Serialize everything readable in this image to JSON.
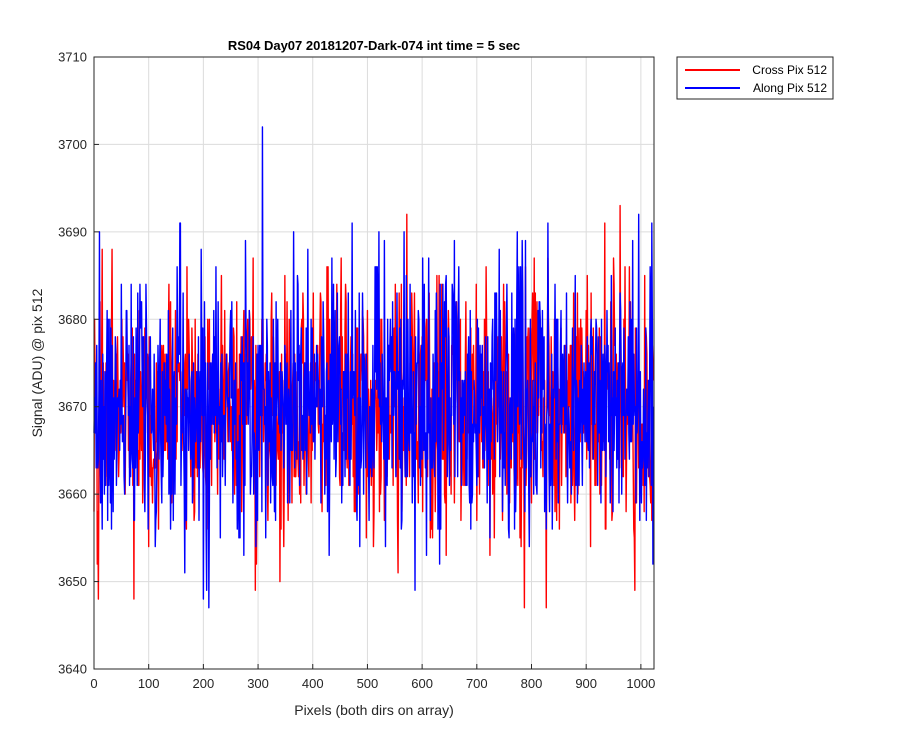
{
  "chart_data": {
    "type": "line",
    "title": "RS04 Day07 20181207-Dark-074 int time = 5 sec",
    "xlabel": "Pixels (both dirs on array)",
    "ylabel": "Signal (ADU) @ pix 512",
    "xlim": [
      0,
      1024
    ],
    "ylim": [
      3640,
      3710
    ],
    "xticks": [
      0,
      100,
      200,
      300,
      400,
      500,
      600,
      700,
      800,
      900,
      1000
    ],
    "yticks": [
      3640,
      3650,
      3660,
      3670,
      3680,
      3690,
      3700,
      3710
    ],
    "grid": true,
    "legend_position": "outside-top-right",
    "series": [
      {
        "name": "Cross Pix 512",
        "color": "#ff0000",
        "noise": {
          "count": 1024,
          "mean": 3670,
          "amplitude": 7.5,
          "min": 3647,
          "max": 3693
        },
        "extremes": [
          {
            "x": 8,
            "y": 3648
          },
          {
            "x": 295,
            "y": 3649
          },
          {
            "x": 340,
            "y": 3650
          },
          {
            "x": 572,
            "y": 3692
          },
          {
            "x": 787,
            "y": 3647
          },
          {
            "x": 827,
            "y": 3647
          },
          {
            "x": 962,
            "y": 3693
          }
        ]
      },
      {
        "name": "Along Pix 512",
        "color": "#0000ff",
        "noise": {
          "count": 1024,
          "mean": 3670,
          "amplitude": 7.5,
          "min": 3647,
          "max": 3702
        },
        "extremes": [
          {
            "x": 157,
            "y": 3691
          },
          {
            "x": 200,
            "y": 3648
          },
          {
            "x": 210,
            "y": 3647
          },
          {
            "x": 308,
            "y": 3702
          },
          {
            "x": 472,
            "y": 3691
          },
          {
            "x": 587,
            "y": 3649
          },
          {
            "x": 1020,
            "y": 3691
          },
          {
            "x": 1022,
            "y": 3652
          }
        ]
      }
    ]
  }
}
